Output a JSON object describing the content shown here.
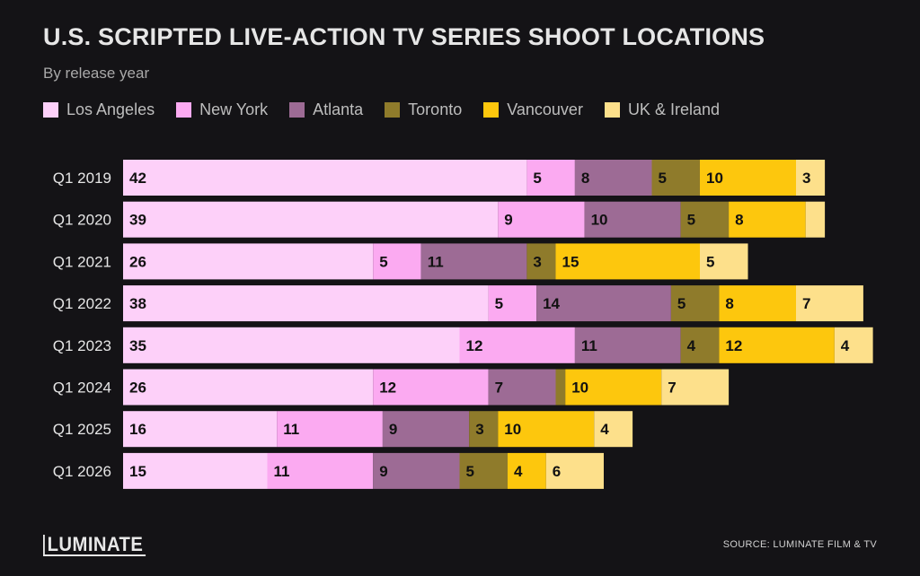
{
  "header": {
    "title": "U.S. SCRIPTED LIVE-ACTION TV SERIES SHOOT LOCATIONS",
    "subtitle": "By release year"
  },
  "footer": {
    "logo_text": "LUMINATE",
    "source": "SOURCE: LUMINATE FILM & TV"
  },
  "chart_data": {
    "type": "bar",
    "orientation": "horizontal",
    "stacked": true,
    "title": "U.S. SCRIPTED LIVE-ACTION TV SERIES SHOOT LOCATIONS",
    "subtitle": "By release year",
    "categories": [
      "Q1 2019",
      "Q1 2020",
      "Q1 2021",
      "Q1 2022",
      "Q1 2023",
      "Q1 2024",
      "Q1 2025",
      "Q1 2026"
    ],
    "series": [
      {
        "name": "Los Angeles",
        "color": "#fdd0f9",
        "values": [
          42,
          39,
          26,
          38,
          35,
          26,
          16,
          15
        ],
        "labels": [
          "42",
          "39",
          "26",
          "38",
          "35",
          "26",
          "16",
          "15"
        ]
      },
      {
        "name": "New York",
        "color": "#fbaaf1",
        "values": [
          5,
          9,
          5,
          5,
          12,
          12,
          11,
          11
        ],
        "labels": [
          "5",
          "9",
          "5",
          "5",
          "12",
          "12",
          "11",
          "11"
        ]
      },
      {
        "name": "Atlanta",
        "color": "#9d6b95",
        "values": [
          8,
          10,
          11,
          14,
          11,
          7,
          9,
          9
        ],
        "labels": [
          "8",
          "10",
          "11",
          "14",
          "11",
          "7",
          "9",
          "9"
        ]
      },
      {
        "name": "Toronto",
        "color": "#8f7b2b",
        "values": [
          5,
          5,
          3,
          5,
          4,
          1,
          3,
          5
        ],
        "labels": [
          "5",
          "5",
          "3",
          "5",
          "4",
          "",
          "3",
          "5"
        ]
      },
      {
        "name": "Vancouver",
        "color": "#fdc70d",
        "values": [
          10,
          8,
          15,
          8,
          12,
          10,
          10,
          4
        ],
        "labels": [
          "10",
          "8",
          "15",
          "8",
          "12",
          "10",
          "10",
          "4"
        ]
      },
      {
        "name": "UK & Ireland",
        "color": "#fde08b",
        "values": [
          3,
          2,
          5,
          7,
          4,
          7,
          4,
          6
        ],
        "labels": [
          "3",
          "",
          "5",
          "7",
          "4",
          "7",
          "4",
          "6"
        ]
      }
    ],
    "legend_position": "top-left",
    "grid": false
  }
}
